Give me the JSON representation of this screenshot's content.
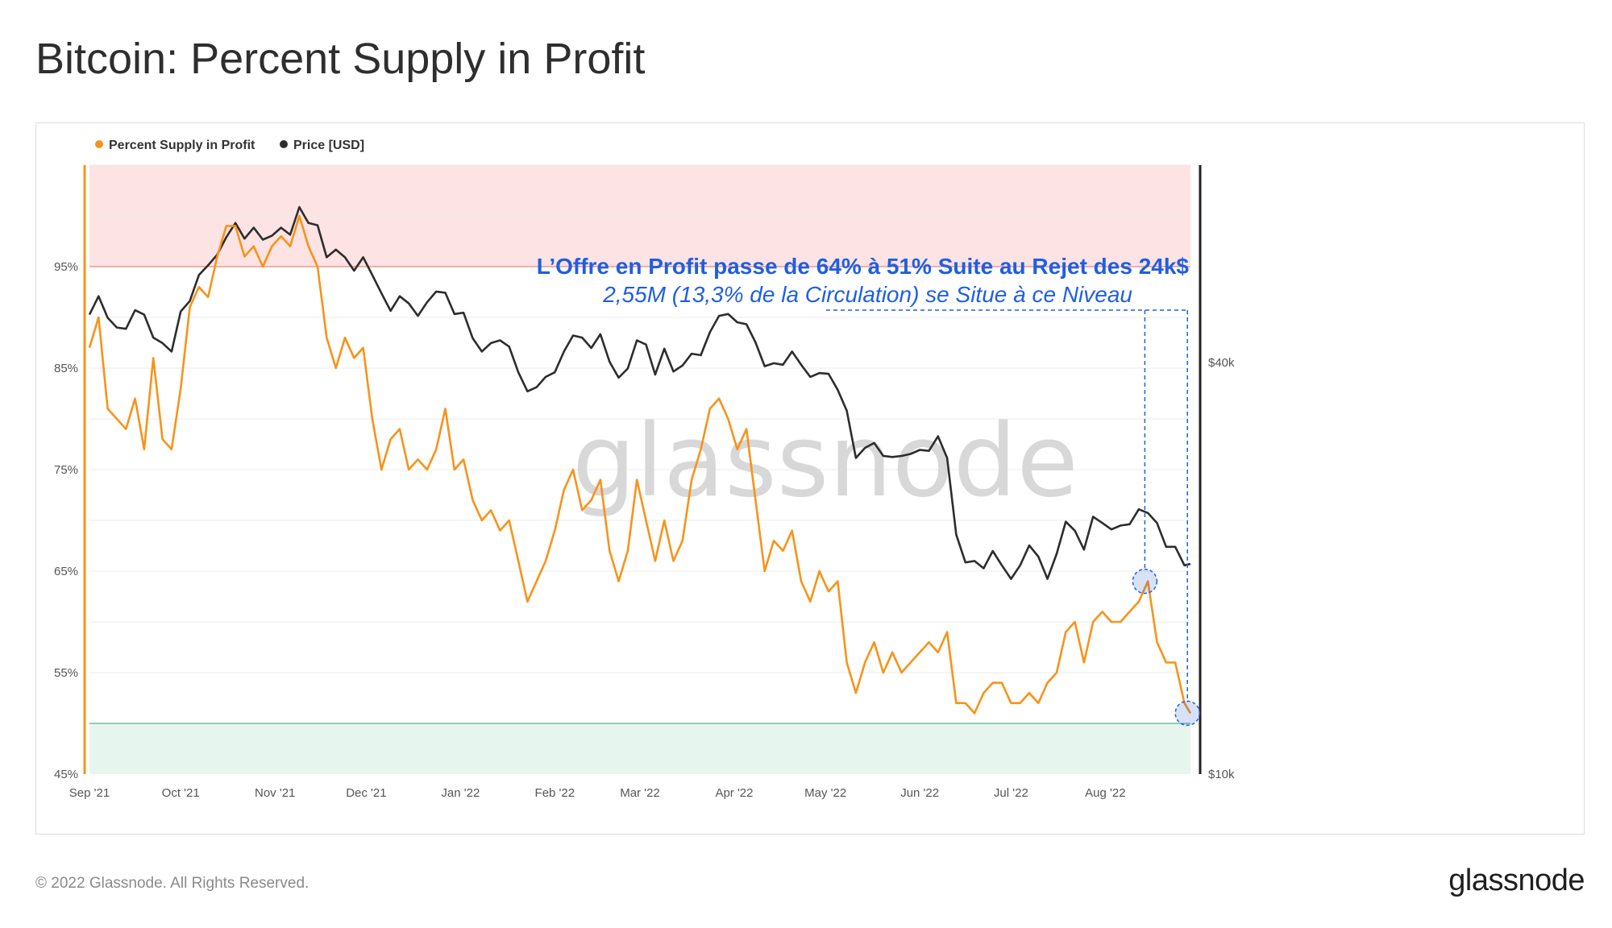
{
  "title": "Bitcoin: Percent Supply in Profit",
  "footer": "© 2022 Glassnode. All Rights Reserved.",
  "brand": "glassnode",
  "watermark": "glassnode",
  "colors": {
    "supply": "#f7931a",
    "price": "#2d2d2d",
    "annotation": "#1f5fe0",
    "upper_zone": "#fde3e3",
    "lower_zone": "#e6f6ee"
  },
  "chart_data": {
    "type": "line",
    "title": "Bitcoin: Percent Supply in Profit",
    "x_ticks": [
      "Sep '21",
      "Oct '21",
      "Nov '21",
      "Dec '21",
      "Jan '22",
      "Feb '22",
      "Mar '22",
      "Apr '22",
      "May '22",
      "Jun '22",
      "Jul '22",
      "Aug '22"
    ],
    "x_range": [
      "2021-09-01",
      "2022-08-29"
    ],
    "y_left": {
      "ticks": [
        "45%",
        "55%",
        "65%",
        "75%",
        "85%",
        "95%"
      ],
      "values": [
        45,
        55,
        65,
        75,
        85,
        95
      ],
      "range": [
        45,
        105
      ]
    },
    "y_right": {
      "ticks": [
        "$10k",
        "$40k"
      ],
      "values": [
        10000,
        40000
      ],
      "scale": "log",
      "range": [
        10000,
        80000
      ]
    },
    "zones": [
      {
        "from": 95,
        "to": 105,
        "color": "#fde3e3"
      },
      {
        "from": 45,
        "to": 50,
        "color": "#e6f6ee"
      }
    ],
    "legend": {
      "placement": "top-left"
    },
    "series": [
      {
        "name": "Percent Supply in Profit",
        "axis": "left",
        "color": "#f7931a",
        "points": [
          [
            "2021-09-01",
            87
          ],
          [
            "2021-09-04",
            90
          ],
          [
            "2021-09-07",
            81
          ],
          [
            "2021-09-10",
            80
          ],
          [
            "2021-09-13",
            79
          ],
          [
            "2021-09-16",
            82
          ],
          [
            "2021-09-19",
            77
          ],
          [
            "2021-09-22",
            86
          ],
          [
            "2021-09-25",
            78
          ],
          [
            "2021-09-28",
            77
          ],
          [
            "2021-10-01",
            83
          ],
          [
            "2021-10-04",
            91
          ],
          [
            "2021-10-07",
            93
          ],
          [
            "2021-10-10",
            92
          ],
          [
            "2021-10-13",
            96
          ],
          [
            "2021-10-16",
            99
          ],
          [
            "2021-10-19",
            99
          ],
          [
            "2021-10-22",
            96
          ],
          [
            "2021-10-25",
            97
          ],
          [
            "2021-10-28",
            95
          ],
          [
            "2021-10-31",
            97
          ],
          [
            "2021-11-03",
            98
          ],
          [
            "2021-11-06",
            97
          ],
          [
            "2021-11-09",
            100
          ],
          [
            "2021-11-12",
            97
          ],
          [
            "2021-11-15",
            95
          ],
          [
            "2021-11-18",
            88
          ],
          [
            "2021-11-21",
            85
          ],
          [
            "2021-11-24",
            88
          ],
          [
            "2021-11-27",
            86
          ],
          [
            "2021-11-30",
            87
          ],
          [
            "2021-12-03",
            80
          ],
          [
            "2021-12-06",
            75
          ],
          [
            "2021-12-09",
            78
          ],
          [
            "2021-12-12",
            79
          ],
          [
            "2021-12-15",
            75
          ],
          [
            "2021-12-18",
            76
          ],
          [
            "2021-12-21",
            75
          ],
          [
            "2021-12-24",
            77
          ],
          [
            "2021-12-27",
            81
          ],
          [
            "2021-12-30",
            75
          ],
          [
            "2022-01-02",
            76
          ],
          [
            "2022-01-05",
            72
          ],
          [
            "2022-01-08",
            70
          ],
          [
            "2022-01-11",
            71
          ],
          [
            "2022-01-14",
            69
          ],
          [
            "2022-01-17",
            70
          ],
          [
            "2022-01-20",
            66
          ],
          [
            "2022-01-23",
            62
          ],
          [
            "2022-01-26",
            64
          ],
          [
            "2022-01-29",
            66
          ],
          [
            "2022-02-01",
            69
          ],
          [
            "2022-02-04",
            73
          ],
          [
            "2022-02-07",
            75
          ],
          [
            "2022-02-10",
            71
          ],
          [
            "2022-02-13",
            72
          ],
          [
            "2022-02-16",
            74
          ],
          [
            "2022-02-19",
            67
          ],
          [
            "2022-02-22",
            64
          ],
          [
            "2022-02-25",
            67
          ],
          [
            "2022-02-28",
            74
          ],
          [
            "2022-03-03",
            70
          ],
          [
            "2022-03-06",
            66
          ],
          [
            "2022-03-09",
            70
          ],
          [
            "2022-03-12",
            66
          ],
          [
            "2022-03-15",
            68
          ],
          [
            "2022-03-18",
            74
          ],
          [
            "2022-03-21",
            77
          ],
          [
            "2022-03-24",
            81
          ],
          [
            "2022-03-27",
            82
          ],
          [
            "2022-03-30",
            80
          ],
          [
            "2022-04-02",
            77
          ],
          [
            "2022-04-05",
            79
          ],
          [
            "2022-04-08",
            72
          ],
          [
            "2022-04-11",
            65
          ],
          [
            "2022-04-14",
            68
          ],
          [
            "2022-04-17",
            67
          ],
          [
            "2022-04-20",
            69
          ],
          [
            "2022-04-23",
            64
          ],
          [
            "2022-04-26",
            62
          ],
          [
            "2022-04-29",
            65
          ],
          [
            "2022-05-02",
            63
          ],
          [
            "2022-05-05",
            64
          ],
          [
            "2022-05-08",
            56
          ],
          [
            "2022-05-11",
            53
          ],
          [
            "2022-05-14",
            56
          ],
          [
            "2022-05-17",
            58
          ],
          [
            "2022-05-20",
            55
          ],
          [
            "2022-05-23",
            57
          ],
          [
            "2022-05-26",
            55
          ],
          [
            "2022-05-29",
            56
          ],
          [
            "2022-06-01",
            57
          ],
          [
            "2022-06-04",
            58
          ],
          [
            "2022-06-07",
            57
          ],
          [
            "2022-06-10",
            59
          ],
          [
            "2022-06-13",
            52
          ],
          [
            "2022-06-16",
            52
          ],
          [
            "2022-06-19",
            51
          ],
          [
            "2022-06-22",
            53
          ],
          [
            "2022-06-25",
            54
          ],
          [
            "2022-06-28",
            54
          ],
          [
            "2022-07-01",
            52
          ],
          [
            "2022-07-04",
            52
          ],
          [
            "2022-07-07",
            53
          ],
          [
            "2022-07-10",
            52
          ],
          [
            "2022-07-13",
            54
          ],
          [
            "2022-07-16",
            55
          ],
          [
            "2022-07-19",
            59
          ],
          [
            "2022-07-22",
            60
          ],
          [
            "2022-07-25",
            56
          ],
          [
            "2022-07-28",
            60
          ],
          [
            "2022-07-31",
            61
          ],
          [
            "2022-08-03",
            60
          ],
          [
            "2022-08-06",
            60
          ],
          [
            "2022-08-09",
            61
          ],
          [
            "2022-08-12",
            62
          ],
          [
            "2022-08-15",
            64
          ],
          [
            "2022-08-18",
            58
          ],
          [
            "2022-08-21",
            56
          ],
          [
            "2022-08-24",
            56
          ],
          [
            "2022-08-27",
            52
          ],
          [
            "2022-08-29",
            51
          ]
        ]
      },
      {
        "name": "Price [USD]",
        "axis": "right",
        "color": "#2d2d2d",
        "points": [
          [
            "2021-09-01",
            47000
          ],
          [
            "2021-09-04",
            50000
          ],
          [
            "2021-09-07",
            46500
          ],
          [
            "2021-09-10",
            45000
          ],
          [
            "2021-09-13",
            44800
          ],
          [
            "2021-09-16",
            47700
          ],
          [
            "2021-09-19",
            47000
          ],
          [
            "2021-09-22",
            43500
          ],
          [
            "2021-09-25",
            42700
          ],
          [
            "2021-09-28",
            41500
          ],
          [
            "2021-10-01",
            47500
          ],
          [
            "2021-10-04",
            49200
          ],
          [
            "2021-10-07",
            53700
          ],
          [
            "2021-10-10",
            55500
          ],
          [
            "2021-10-13",
            57500
          ],
          [
            "2021-10-16",
            61000
          ],
          [
            "2021-10-19",
            64000
          ],
          [
            "2021-10-22",
            60700
          ],
          [
            "2021-10-25",
            63000
          ],
          [
            "2021-10-28",
            60500
          ],
          [
            "2021-10-31",
            61300
          ],
          [
            "2021-11-03",
            63000
          ],
          [
            "2021-11-06",
            61500
          ],
          [
            "2021-11-09",
            67500
          ],
          [
            "2021-11-12",
            64000
          ],
          [
            "2021-11-15",
            63500
          ],
          [
            "2021-11-18",
            57000
          ],
          [
            "2021-11-21",
            58500
          ],
          [
            "2021-11-24",
            57000
          ],
          [
            "2021-11-27",
            54500
          ],
          [
            "2021-11-30",
            57000
          ],
          [
            "2021-12-03",
            53700
          ],
          [
            "2021-12-06",
            50500
          ],
          [
            "2021-12-09",
            47600
          ],
          [
            "2021-12-12",
            50000
          ],
          [
            "2021-12-15",
            48800
          ],
          [
            "2021-12-18",
            46800
          ],
          [
            "2021-12-21",
            49000
          ],
          [
            "2021-12-24",
            50800
          ],
          [
            "2021-12-27",
            50600
          ],
          [
            "2021-12-30",
            47100
          ],
          [
            "2022-01-02",
            47300
          ],
          [
            "2022-01-05",
            43400
          ],
          [
            "2022-01-08",
            41500
          ],
          [
            "2022-01-11",
            42700
          ],
          [
            "2022-01-14",
            43100
          ],
          [
            "2022-01-17",
            42200
          ],
          [
            "2022-01-20",
            38700
          ],
          [
            "2022-01-23",
            36300
          ],
          [
            "2022-01-26",
            36800
          ],
          [
            "2022-01-29",
            38100
          ],
          [
            "2022-02-01",
            38700
          ],
          [
            "2022-02-04",
            41500
          ],
          [
            "2022-02-07",
            43800
          ],
          [
            "2022-02-10",
            43500
          ],
          [
            "2022-02-13",
            42000
          ],
          [
            "2022-02-16",
            44000
          ],
          [
            "2022-02-19",
            40100
          ],
          [
            "2022-02-22",
            38000
          ],
          [
            "2022-02-25",
            39200
          ],
          [
            "2022-02-28",
            43100
          ],
          [
            "2022-03-03",
            42500
          ],
          [
            "2022-03-06",
            38400
          ],
          [
            "2022-03-09",
            41900
          ],
          [
            "2022-03-12",
            38800
          ],
          [
            "2022-03-15",
            39600
          ],
          [
            "2022-03-18",
            41200
          ],
          [
            "2022-03-21",
            41000
          ],
          [
            "2022-03-24",
            44300
          ],
          [
            "2022-03-27",
            46800
          ],
          [
            "2022-03-30",
            47100
          ],
          [
            "2022-04-02",
            45800
          ],
          [
            "2022-04-05",
            45500
          ],
          [
            "2022-04-08",
            42800
          ],
          [
            "2022-04-11",
            39500
          ],
          [
            "2022-04-14",
            39900
          ],
          [
            "2022-04-17",
            39700
          ],
          [
            "2022-04-20",
            41500
          ],
          [
            "2022-04-23",
            39700
          ],
          [
            "2022-04-26",
            38100
          ],
          [
            "2022-04-29",
            38600
          ],
          [
            "2022-05-02",
            38500
          ],
          [
            "2022-05-05",
            36500
          ],
          [
            "2022-05-08",
            34000
          ],
          [
            "2022-05-11",
            29000
          ],
          [
            "2022-05-14",
            30000
          ],
          [
            "2022-05-17",
            30500
          ],
          [
            "2022-05-20",
            29200
          ],
          [
            "2022-05-23",
            29100
          ],
          [
            "2022-05-26",
            29200
          ],
          [
            "2022-05-29",
            29400
          ],
          [
            "2022-06-01",
            29800
          ],
          [
            "2022-06-04",
            29700
          ],
          [
            "2022-06-07",
            31200
          ],
          [
            "2022-06-10",
            29000
          ],
          [
            "2022-06-13",
            22400
          ],
          [
            "2022-06-16",
            20400
          ],
          [
            "2022-06-19",
            20500
          ],
          [
            "2022-06-22",
            20000
          ],
          [
            "2022-06-25",
            21200
          ],
          [
            "2022-06-28",
            20200
          ],
          [
            "2022-07-01",
            19300
          ],
          [
            "2022-07-04",
            20200
          ],
          [
            "2022-07-07",
            21600
          ],
          [
            "2022-07-10",
            20800
          ],
          [
            "2022-07-13",
            19300
          ],
          [
            "2022-07-16",
            21000
          ],
          [
            "2022-07-19",
            23400
          ],
          [
            "2022-07-22",
            22700
          ],
          [
            "2022-07-25",
            21300
          ],
          [
            "2022-07-28",
            23800
          ],
          [
            "2022-07-31",
            23300
          ],
          [
            "2022-08-03",
            22800
          ],
          [
            "2022-08-06",
            23100
          ],
          [
            "2022-08-09",
            23200
          ],
          [
            "2022-08-12",
            24400
          ],
          [
            "2022-08-15",
            24100
          ],
          [
            "2022-08-18",
            23300
          ],
          [
            "2022-08-21",
            21500
          ],
          [
            "2022-08-24",
            21500
          ],
          [
            "2022-08-27",
            20200
          ],
          [
            "2022-08-29",
            20300
          ]
        ]
      }
    ],
    "annotations": [
      {
        "text": "L’Offre en Profit passe de 64% à 51% Suite au Rejet des 24k$"
      },
      {
        "text": "2,55M (13,3% de la Circulation) se Situe à ce Niveau"
      }
    ],
    "markers": [
      {
        "date": "2022-08-14",
        "value": 64
      },
      {
        "date": "2022-08-28",
        "value": 51
      }
    ]
  }
}
